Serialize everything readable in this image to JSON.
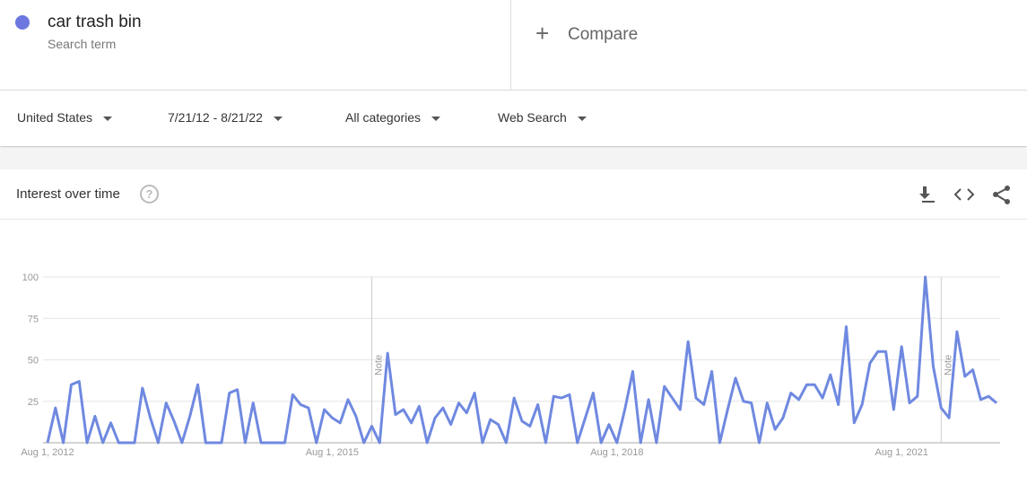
{
  "search_term": {
    "name": "car trash bin",
    "subtitle": "Search term"
  },
  "compare": "Compare",
  "filters": [
    "United States",
    "7/21/12 - 8/21/22",
    "All categories",
    "Web Search"
  ],
  "card_title": "Interest over time",
  "chart_data": {
    "type": "line",
    "series": [
      {
        "name": "car trash bin",
        "color": "#6f89e0",
        "values": [
          0,
          21,
          0,
          35,
          37,
          0,
          16,
          0,
          12,
          0,
          0,
          0,
          33,
          15,
          0,
          24,
          13,
          0,
          16,
          35,
          0,
          0,
          0,
          30,
          32,
          0,
          24,
          0,
          0,
          0,
          0,
          29,
          23,
          21,
          0,
          20,
          15,
          12,
          26,
          16,
          0,
          10,
          0,
          54,
          17,
          20,
          12,
          22,
          0,
          15,
          21,
          11,
          24,
          18,
          30,
          0,
          14,
          11,
          0,
          27,
          13,
          10,
          23,
          0,
          28,
          27,
          29,
          0,
          15,
          30,
          0,
          11,
          0,
          20,
          43,
          0,
          26,
          0,
          34,
          27,
          20,
          61,
          27,
          23,
          43,
          0,
          20,
          39,
          25,
          24,
          0,
          24,
          8,
          15,
          30,
          26,
          35,
          35,
          27,
          41,
          23,
          70,
          12,
          23,
          48,
          55,
          55,
          20,
          58,
          24,
          28,
          100,
          46,
          21,
          15,
          67,
          40,
          44,
          26,
          28,
          24
        ]
      }
    ],
    "xlim": [
      0,
      120
    ],
    "xticks": [
      {
        "value": 0,
        "label": "Aug 1, 2012"
      },
      {
        "value": 36,
        "label": "Aug 1, 2015"
      },
      {
        "value": 72,
        "label": "Aug 1, 2018"
      },
      {
        "value": 108,
        "label": "Aug 1, 2021"
      }
    ],
    "ylim": [
      0,
      100
    ],
    "yticks": [
      25,
      50,
      75,
      100
    ],
    "grid": true,
    "notes": [
      {
        "x": 41,
        "label": "Note"
      },
      {
        "x": 113,
        "label": "Note"
      }
    ]
  }
}
